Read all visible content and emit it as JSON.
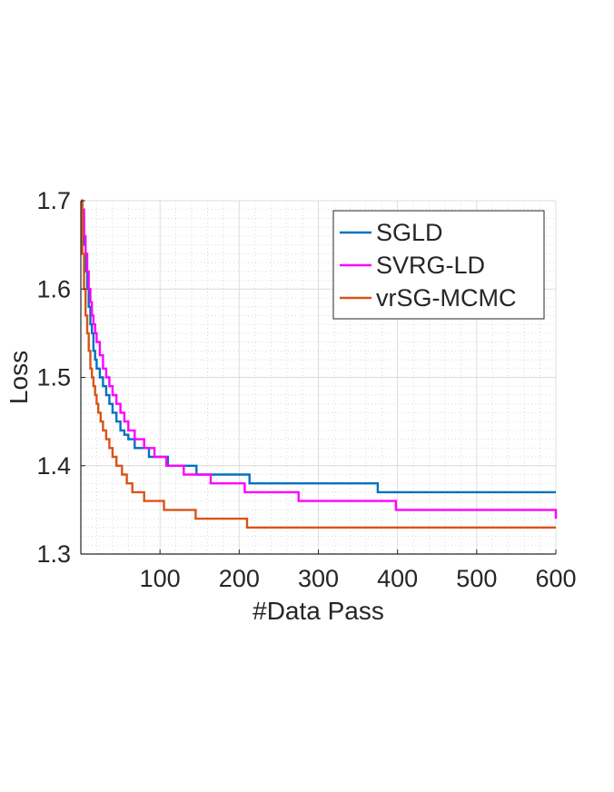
{
  "chart_data": {
    "type": "line",
    "xlabel": "#Data Pass",
    "ylabel": "Loss",
    "xlim": [
      0,
      600
    ],
    "ylim": [
      1.3,
      1.7
    ],
    "xticks": [
      100,
      200,
      300,
      400,
      500,
      600
    ],
    "yticks": [
      1.3,
      1.4,
      1.5,
      1.6,
      1.7
    ],
    "xtick_labels": [
      "100",
      "200",
      "300",
      "400",
      "500",
      "600"
    ],
    "ytick_labels": [
      "1.3",
      "1.4",
      "1.5",
      "1.6",
      "1.7"
    ],
    "grid": true,
    "minor_grid": true,
    "legend_position": "top-right",
    "series": [
      {
        "name": "SGLD",
        "color": "#0072BD",
        "x": [
          0,
          2,
          4,
          6,
          8,
          10,
          12,
          14,
          16,
          18,
          20,
          24,
          28,
          32,
          36,
          40,
          45,
          50,
          55,
          60,
          68,
          76,
          86,
          110,
          146,
          213,
          375,
          600
        ],
        "y": [
          1.7,
          1.68,
          1.65,
          1.62,
          1.6,
          1.58,
          1.56,
          1.55,
          1.53,
          1.52,
          1.51,
          1.5,
          1.49,
          1.48,
          1.47,
          1.46,
          1.45,
          1.44,
          1.435,
          1.43,
          1.42,
          1.42,
          1.41,
          1.4,
          1.39,
          1.38,
          1.37,
          1.37
        ]
      },
      {
        "name": "SVRG-LD",
        "color": "#FF00FF",
        "x": [
          0,
          2,
          4,
          6,
          8,
          10,
          12,
          14,
          16,
          18,
          20,
          24,
          28,
          32,
          36,
          40,
          45,
          50,
          55,
          60,
          68,
          80,
          93,
          108,
          130,
          164,
          207,
          275,
          398,
          600
        ],
        "y": [
          1.7,
          1.69,
          1.66,
          1.64,
          1.62,
          1.6,
          1.585,
          1.57,
          1.56,
          1.55,
          1.54,
          1.525,
          1.51,
          1.5,
          1.49,
          1.48,
          1.47,
          1.46,
          1.45,
          1.44,
          1.43,
          1.42,
          1.41,
          1.4,
          1.39,
          1.38,
          1.37,
          1.36,
          1.35,
          1.34
        ]
      },
      {
        "name": "vrSG-MCMC",
        "color": "#D95319",
        "x": [
          0,
          2,
          4,
          6,
          8,
          10,
          12,
          14,
          16,
          18,
          20,
          22,
          25,
          28,
          32,
          36,
          40,
          45,
          52,
          58,
          65,
          80,
          105,
          145,
          210,
          335,
          600
        ],
        "y": [
          1.7,
          1.64,
          1.6,
          1.57,
          1.55,
          1.53,
          1.51,
          1.5,
          1.49,
          1.48,
          1.47,
          1.46,
          1.45,
          1.44,
          1.43,
          1.42,
          1.41,
          1.4,
          1.39,
          1.38,
          1.37,
          1.36,
          1.35,
          1.34,
          1.33,
          1.33,
          1.33
        ]
      }
    ]
  }
}
